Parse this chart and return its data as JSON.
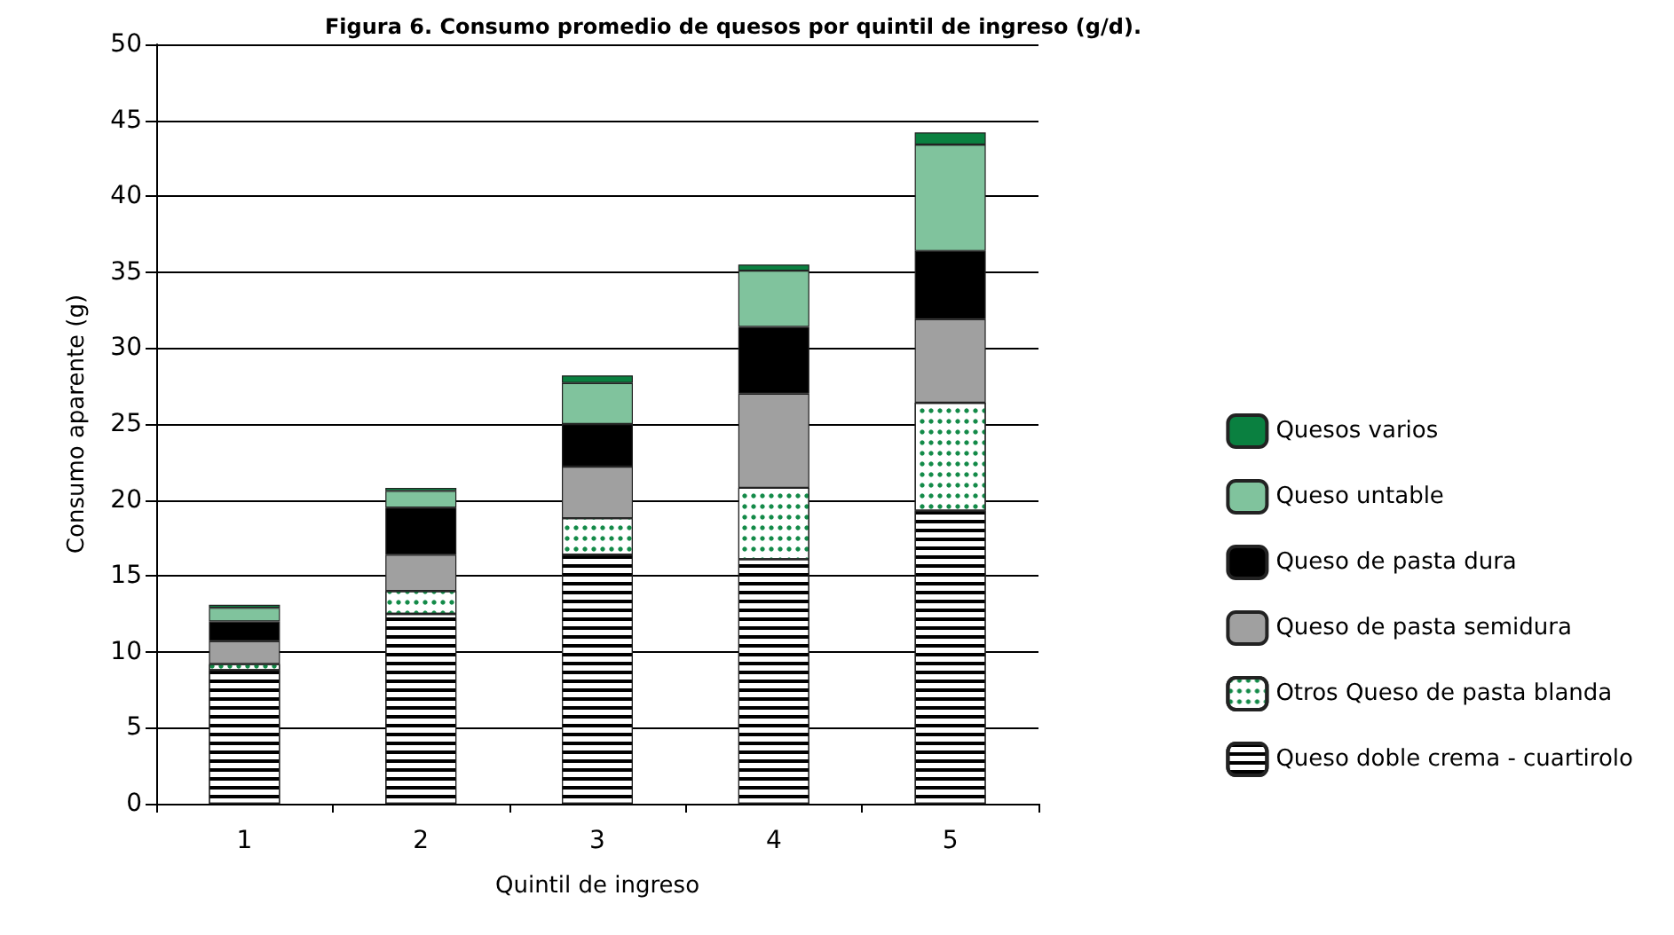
{
  "chart_data": {
    "type": "bar",
    "title": "Figura 6. Consumo promedio de quesos por quintil de ingreso (g/d).",
    "xlabel": "Quintil de ingreso",
    "ylabel": "Consumo aparente (g)",
    "categories": [
      "1",
      "2",
      "3",
      "4",
      "5"
    ],
    "stacked": true,
    "ylim": [
      0,
      50
    ],
    "yticks": [
      0,
      5,
      10,
      15,
      20,
      25,
      30,
      35,
      40,
      45,
      50
    ],
    "grid": "y",
    "legend": "right",
    "series": [
      {
        "name": "Queso doble crema - cuartirolo",
        "color": "#ffffff",
        "values": [
          8.8,
          12.5,
          16.4,
          16.1,
          19.3
        ]
      },
      {
        "name": "Otros Queso de pasta blanda",
        "color": "#ffffff",
        "values": [
          0.4,
          1.5,
          2.4,
          4.7,
          7.1
        ]
      },
      {
        "name": "Queso de pasta semidura",
        "color": "#a0a0a0",
        "values": [
          1.5,
          2.4,
          3.4,
          6.2,
          5.5
        ]
      },
      {
        "name": "Queso de pasta dura",
        "color": "#000000",
        "values": [
          1.3,
          3.1,
          2.8,
          4.4,
          4.5
        ]
      },
      {
        "name": "Queso untable",
        "color": "#80c39d",
        "values": [
          0.9,
          1.1,
          2.7,
          3.7,
          7.0
        ]
      },
      {
        "name": "Quesos varios",
        "color": "#0a8040",
        "values": [
          0.2,
          0.2,
          0.5,
          0.4,
          0.8
        ]
      }
    ]
  }
}
